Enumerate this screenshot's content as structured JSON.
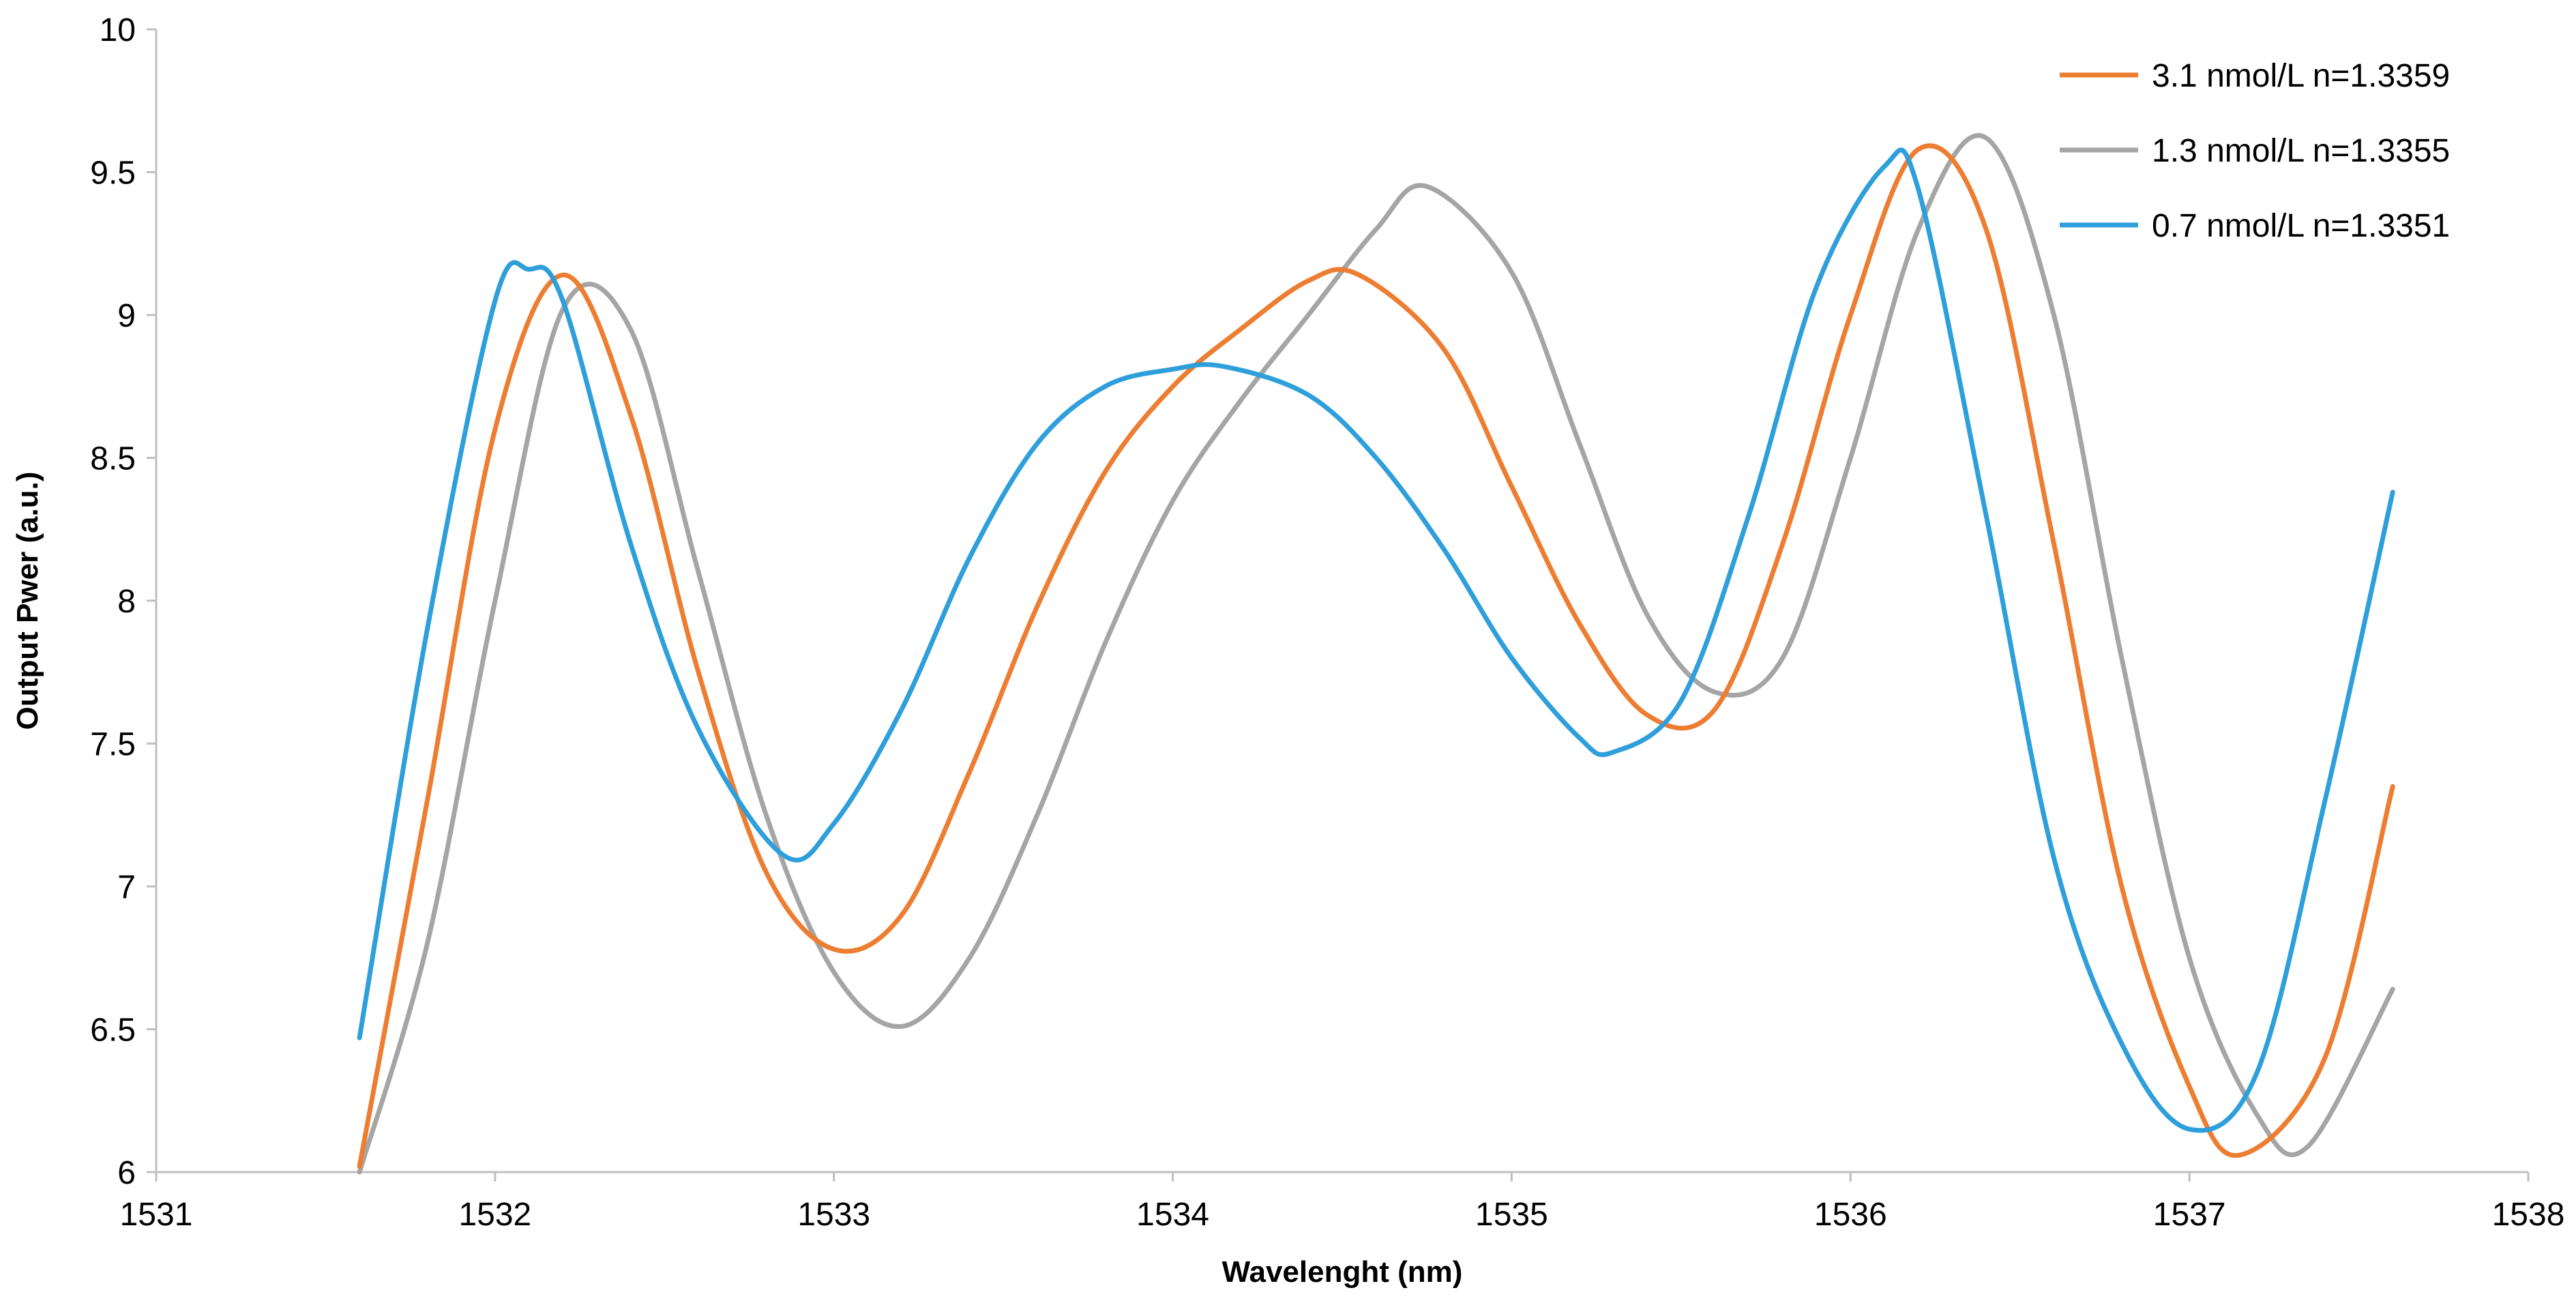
{
  "chart_data": {
    "type": "line",
    "title": "",
    "xlabel": "Wavelenght (nm)",
    "ylabel": "Output Pwer (a.u.)",
    "xlim": [
      1531,
      1538
    ],
    "ylim": [
      6,
      10
    ],
    "x_ticks": [
      "1531",
      "1532",
      "1533",
      "1534",
      "1535",
      "1536",
      "1537",
      "1538"
    ],
    "y_ticks": [
      "6",
      "6.5",
      "7",
      "7.5",
      "8",
      "8.5",
      "9",
      "9.5",
      "10"
    ],
    "grid": false,
    "legend_position": "top-right",
    "series": [
      {
        "name": "3.1 nmol/L n=1.3359",
        "color": "#ED7D31",
        "x": [
          1531.6,
          1531.8,
          1532.0,
          1532.2,
          1532.4,
          1532.6,
          1532.8,
          1533.0,
          1533.2,
          1533.4,
          1533.6,
          1533.8,
          1534.0,
          1534.2,
          1534.4,
          1534.55,
          1534.8,
          1535.0,
          1535.2,
          1535.4,
          1535.6,
          1535.8,
          1536.0,
          1536.2,
          1536.4,
          1536.6,
          1536.8,
          1537.0,
          1537.15,
          1537.4,
          1537.6
        ],
        "y": [
          6.02,
          7.3,
          8.6,
          9.14,
          8.65,
          7.75,
          7.05,
          6.78,
          6.9,
          7.4,
          7.98,
          8.45,
          8.75,
          8.95,
          9.12,
          9.14,
          8.88,
          8.4,
          7.92,
          7.6,
          7.62,
          8.2,
          9.0,
          9.58,
          9.3,
          8.2,
          7.0,
          6.3,
          6.06,
          6.4,
          7.35
        ]
      },
      {
        "name": "1.3 nmol/L n=1.3355",
        "color": "#A5A5A5",
        "x": [
          1531.6,
          1531.8,
          1532.0,
          1532.2,
          1532.4,
          1532.6,
          1532.8,
          1533.0,
          1533.2,
          1533.4,
          1533.6,
          1533.8,
          1534.0,
          1534.2,
          1534.4,
          1534.6,
          1534.75,
          1535.0,
          1535.2,
          1535.4,
          1535.6,
          1535.8,
          1536.0,
          1536.2,
          1536.4,
          1536.6,
          1536.8,
          1537.0,
          1537.2,
          1537.35,
          1537.6
        ],
        "y": [
          6.0,
          6.8,
          8.0,
          9.02,
          8.95,
          8.1,
          7.25,
          6.7,
          6.51,
          6.75,
          7.25,
          7.85,
          8.35,
          8.7,
          9.0,
          9.3,
          9.45,
          9.15,
          8.55,
          7.95,
          7.68,
          7.8,
          8.5,
          9.3,
          9.62,
          9.0,
          7.8,
          6.75,
          6.2,
          6.09,
          6.64
        ]
      },
      {
        "name": "0.7 nmol/L n=1.3351",
        "color": "#2E9FDB",
        "x": [
          1531.6,
          1531.8,
          1532.0,
          1532.1,
          1532.2,
          1532.4,
          1532.6,
          1532.85,
          1533.0,
          1533.2,
          1533.4,
          1533.6,
          1533.8,
          1534.0,
          1534.15,
          1534.4,
          1534.6,
          1534.8,
          1535.0,
          1535.2,
          1535.3,
          1535.5,
          1535.7,
          1535.9,
          1536.1,
          1536.2,
          1536.4,
          1536.6,
          1536.8,
          1537.0,
          1537.2,
          1537.4,
          1537.6
        ],
        "y": [
          6.47,
          7.9,
          9.05,
          9.16,
          9.05,
          8.2,
          7.55,
          7.11,
          7.22,
          7.62,
          8.15,
          8.55,
          8.75,
          8.81,
          8.82,
          8.72,
          8.5,
          8.18,
          7.8,
          7.52,
          7.47,
          7.65,
          8.3,
          9.1,
          9.52,
          9.44,
          8.3,
          7.1,
          6.45,
          6.15,
          6.35,
          7.3,
          8.38
        ]
      }
    ]
  }
}
